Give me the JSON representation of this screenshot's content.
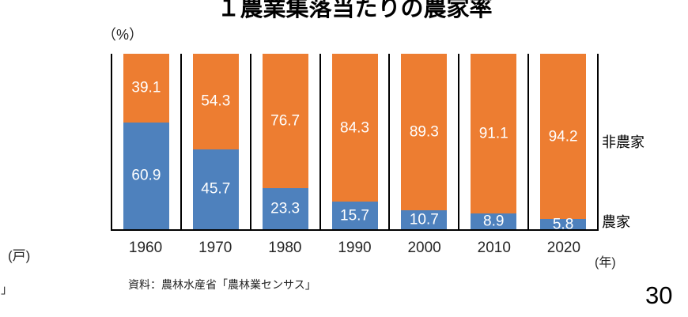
{
  "page": {
    "title": "１農業集落当たりの農家率",
    "page_number": "30",
    "source": "資料：農林水産省「農林業センサス」",
    "y_unit": "（%）",
    "x_unit": "(年)"
  },
  "fragments": {
    "left_top_unit": "(戸)",
    "left_bottom_bracket": "」"
  },
  "chart_data": {
    "type": "bar",
    "subtype": "stacked-100-percent",
    "title": "１農業集落当たりの農家率",
    "xlabel": "(年)",
    "ylabel": "（%）",
    "ylim": [
      0,
      100
    ],
    "grid": "vertical-category-dividers",
    "legend_position": "right-outside",
    "data_labels": true,
    "categories": [
      "1960",
      "1970",
      "1980",
      "1990",
      "2000",
      "2010",
      "2020"
    ],
    "series": [
      {
        "name": "農家",
        "color": "#4E81BD",
        "values": [
          60.9,
          45.7,
          23.3,
          15.7,
          10.7,
          8.9,
          5.8
        ]
      },
      {
        "name": "非農家",
        "color": "#ED7D31",
        "values": [
          39.1,
          54.3,
          76.7,
          84.3,
          89.3,
          91.1,
          94.2
        ]
      }
    ]
  },
  "colors": {
    "farm_bar": "#4E81BD",
    "nonfarm_bar": "#ED7D31",
    "bar_label_text": "#FFFFFF",
    "axis_line": "#000000",
    "background": "#FFFFFF"
  }
}
